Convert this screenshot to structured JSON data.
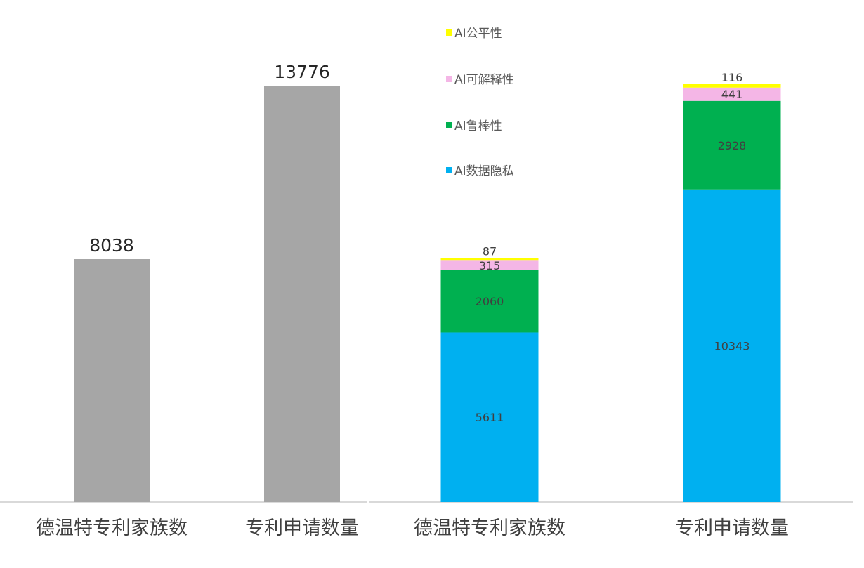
{
  "chart_data": [
    {
      "type": "bar",
      "categories": [
        "德温特专利家族数",
        "专利申请数量"
      ],
      "values": [
        8038,
        13776
      ],
      "color": "#a6a6a6",
      "title": "",
      "xlabel": "",
      "ylabel": "",
      "ylim": [
        0,
        15000
      ],
      "grid": false,
      "legend": "none"
    },
    {
      "type": "bar",
      "stacked": true,
      "categories": [
        "德温特专利家族数",
        "专利申请数量"
      ],
      "series": [
        {
          "name": "AI数据隐私",
          "values": [
            5611,
            10343
          ],
          "color": "#00b0f0"
        },
        {
          "name": "AI鲁棒性",
          "values": [
            2060,
            2928
          ],
          "color": "#00b050"
        },
        {
          "name": "AI可解释性",
          "values": [
            315,
            441
          ],
          "color": "#f4b6e6"
        },
        {
          "name": "AI公平性",
          "values": [
            87,
            116
          ],
          "color": "#ffff00"
        }
      ],
      "legend_order": [
        "AI公平性",
        "AI可解释性",
        "AI鲁棒性",
        "AI数据隐私"
      ],
      "title": "",
      "xlabel": "",
      "ylabel": "",
      "ylim": [
        0,
        15000
      ],
      "grid": false,
      "legend": "top-center"
    }
  ]
}
